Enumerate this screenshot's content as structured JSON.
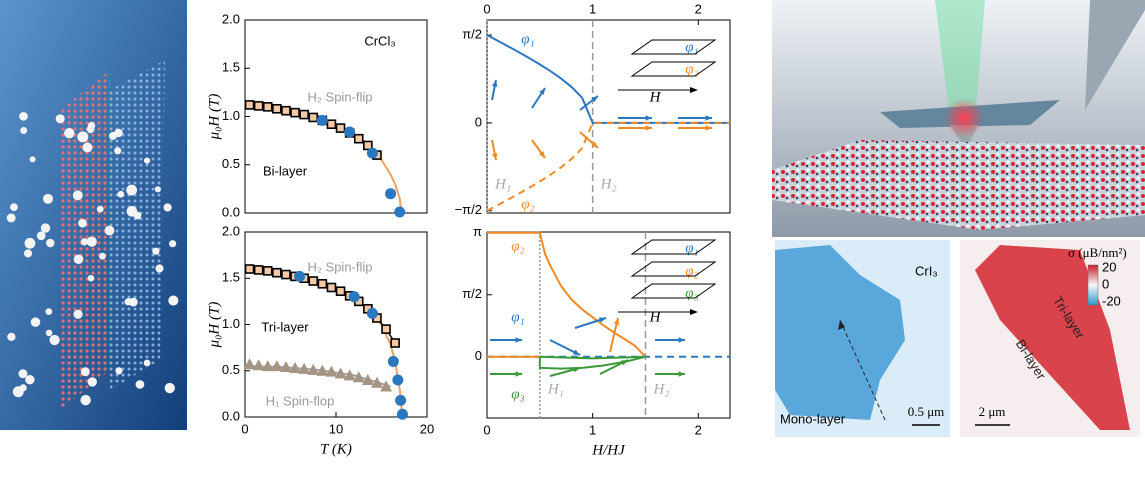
{
  "chart_data": [
    {
      "type": "scatter",
      "xlim": [
        0,
        20
      ],
      "ylim": [
        0,
        2.0
      ],
      "yticks": [
        {
          "value": 0,
          "label": "0.0"
        },
        {
          "value": 0.5,
          "label": "0.5"
        },
        {
          "value": 1.0,
          "label": "1.0"
        },
        {
          "value": 1.5,
          "label": "1.5"
        },
        {
          "value": 2.0,
          "label": "2.0"
        }
      ],
      "ylabel": "μ₀H (T)",
      "annotations": [
        {
          "text": "CrCl₃",
          "color": "#000000"
        },
        {
          "text": "H₂ Spin-flip",
          "color": "#999999"
        },
        {
          "text": "Bi-layer",
          "color": "#000000"
        }
      ],
      "series": [
        {
          "color": "#f0a060",
          "marker": "line",
          "x": [
            0,
            2,
            4,
            6,
            8,
            10,
            12,
            13,
            14,
            15,
            16,
            16.5,
            17,
            17.2
          ],
          "values": [
            1.14,
            1.13,
            1.1,
            1.06,
            1.0,
            0.92,
            0.82,
            0.75,
            0.66,
            0.55,
            0.4,
            0.3,
            0.15,
            0
          ]
        },
        {
          "color": "#000000",
          "marker": "square",
          "x": [
            0.5,
            1.5,
            2.5,
            3.5,
            4.5,
            5.5,
            6.5,
            7.5,
            8.5,
            9.5,
            10.5,
            11.5,
            12.5,
            13.5,
            14.5
          ],
          "values": [
            1.12,
            1.11,
            1.1,
            1.08,
            1.06,
            1.04,
            1.02,
            0.99,
            0.96,
            0.92,
            0.88,
            0.83,
            0.77,
            0.7,
            0.6
          ]
        },
        {
          "color": "#2a78c0",
          "marker": "circle",
          "x": [
            8.5,
            11.5,
            14,
            16,
            17
          ],
          "values": [
            0.96,
            0.84,
            0.62,
            0.2,
            0.01
          ]
        }
      ]
    },
    {
      "type": "scatter",
      "xlim": [
        0,
        20
      ],
      "ylim": [
        0,
        2.0
      ],
      "xticks": [
        0,
        10,
        20
      ],
      "yticks": [
        {
          "value": 0,
          "label": "0.0"
        },
        {
          "value": 0.5,
          "label": "0.5"
        },
        {
          "value": 1.0,
          "label": "1.0"
        },
        {
          "value": 1.5,
          "label": "1.5"
        },
        {
          "value": 2.0,
          "label": "2.0"
        }
      ],
      "ylabel": "μ₀H (T)",
      "xlabel": "T (K)",
      "annotations": [
        {
          "text": "H₂ Spin-flip",
          "color": "#999999"
        },
        {
          "text": "Tri-layer",
          "color": "#000000"
        },
        {
          "text": "H₁ Spin-flop",
          "color": "#999999"
        }
      ],
      "series": [
        {
          "color": "#f0a060",
          "marker": "line",
          "x": [
            0,
            2,
            4,
            6,
            8,
            10,
            12,
            14,
            15,
            16,
            16.5,
            17,
            17.3
          ],
          "values": [
            1.62,
            1.6,
            1.57,
            1.52,
            1.46,
            1.38,
            1.28,
            1.12,
            1.0,
            0.78,
            0.6,
            0.3,
            0
          ]
        },
        {
          "color": "#a0a0a0",
          "marker": "line",
          "x": [
            0,
            4,
            8,
            12,
            16
          ],
          "values": [
            0.55,
            0.54,
            0.51,
            0.45,
            0.33
          ]
        },
        {
          "color": "#a39484",
          "marker": "triangle",
          "x": [
            0.5,
            1.5,
            2.5,
            3.5,
            4.5,
            5.5,
            6.5,
            7.5,
            8.5,
            9.5,
            10.5,
            11.5,
            12.5,
            13.5,
            14.5,
            15.5
          ],
          "values": [
            0.57,
            0.56,
            0.55,
            0.55,
            0.54,
            0.53,
            0.52,
            0.51,
            0.5,
            0.49,
            0.47,
            0.45,
            0.43,
            0.4,
            0.37,
            0.33
          ]
        },
        {
          "color": "#000000",
          "marker": "square",
          "x": [
            0.5,
            1.5,
            2.5,
            3.5,
            4.5,
            5.5,
            6.5,
            7.5,
            8.5,
            9.5,
            10.5,
            11.5,
            12.5,
            13.5,
            14.5,
            15.5,
            16.5
          ],
          "values": [
            1.6,
            1.59,
            1.58,
            1.56,
            1.54,
            1.52,
            1.5,
            1.47,
            1.44,
            1.4,
            1.36,
            1.31,
            1.25,
            1.17,
            1.07,
            0.95,
            0.8
          ]
        },
        {
          "color": "#2a78c0",
          "marker": "circle",
          "x": [
            6,
            12,
            14,
            16.3,
            16.8,
            17.1,
            17.3
          ],
          "values": [
            1.52,
            1.3,
            1.12,
            0.6,
            0.4,
            0.18,
            0.03
          ]
        }
      ]
    },
    {
      "type": "line",
      "xlim": [
        0,
        2.3
      ],
      "ylim": [
        -1.61,
        1.84
      ],
      "xticks": [
        0,
        1,
        2
      ],
      "xaxis": "top",
      "yticks": [
        {
          "value": -1.5708,
          "label": "−π/2"
        },
        0,
        {
          "value": 1.5708,
          "label": "π/2"
        }
      ],
      "vlines": [
        {
          "x": 0,
          "label": "H₁",
          "dash": "2,2"
        },
        {
          "x": 1,
          "label": "H₂",
          "dash": "7,4"
        }
      ],
      "annotations": [
        {
          "text": "φ₁",
          "color": "#2a78c0"
        },
        {
          "text": "φ₂",
          "color": "#f08a24"
        },
        {
          "text": "φ₁",
          "color": "#2a78c0"
        },
        {
          "text": "φ₂",
          "color": "#f08a24"
        },
        {
          "text": "H",
          "color": "#000000"
        }
      ],
      "series": [
        {
          "color": "#2a78c0",
          "dash": false,
          "x": [
            0,
            0.1,
            0.2,
            0.3,
            0.4,
            0.5,
            0.6,
            0.7,
            0.8,
            0.9,
            1.0,
            2.3
          ],
          "values": [
            1.571,
            1.471,
            1.369,
            1.266,
            1.159,
            1.047,
            0.927,
            0.795,
            0.644,
            0.451,
            0,
            0
          ]
        },
        {
          "color": "#f08a24",
          "dash": true,
          "x": [
            0,
            0.1,
            0.2,
            0.3,
            0.4,
            0.5,
            0.6,
            0.7,
            0.8,
            0.9,
            1.0,
            2.3
          ],
          "values": [
            -1.571,
            -1.471,
            -1.369,
            -1.266,
            -1.159,
            -1.047,
            -0.927,
            -0.795,
            -0.644,
            -0.451,
            0,
            0
          ]
        }
      ]
    },
    {
      "type": "line",
      "xlim": [
        0,
        2.3
      ],
      "ylim": [
        -1.55,
        3.16
      ],
      "xticks": [
        0,
        1,
        2
      ],
      "xlabel": "H/HJ",
      "yticks": [
        0,
        {
          "value": 1.5708,
          "label": "π/2"
        },
        {
          "value": 3.1416,
          "label": "π"
        }
      ],
      "vlines": [
        {
          "x": 0.5,
          "label": "H₁",
          "dash": "2,2"
        },
        {
          "x": 1.5,
          "label": "H₂",
          "dash": "7,4"
        }
      ],
      "annotations": [
        {
          "text": "φ₂",
          "color": "#f08a24"
        },
        {
          "text": "φ₁",
          "color": "#2a78c0"
        },
        {
          "text": "φ₃",
          "color": "#3a9a3a"
        },
        {
          "text": "φ₁",
          "color": "#2a78c0"
        },
        {
          "text": "φ₂",
          "color": "#f08a24"
        },
        {
          "text": "φ₃",
          "color": "#3a9a3a"
        },
        {
          "text": "H",
          "color": "#000000"
        }
      ],
      "series": [
        {
          "color": "#2a78c0",
          "dash": true,
          "x": [
            0,
            2.3
          ],
          "values": [
            0,
            0
          ]
        },
        {
          "color": "#f08a24",
          "dash": false,
          "x": [
            0,
            0.5,
            0.55,
            0.6,
            0.7,
            0.8,
            0.9,
            1.0,
            1.1,
            1.2,
            1.3,
            1.4,
            1.5
          ],
          "values": [
            3.1416,
            3.1416,
            2.6,
            2.3,
            1.8,
            1.45,
            1.2,
            1.0,
            0.8,
            0.62,
            0.45,
            0.28,
            0
          ]
        },
        {
          "color": "#f08a24",
          "dash": false,
          "x": [
            0,
            0.5
          ],
          "values": [
            0,
            0
          ]
        },
        {
          "color": "#3a9a3a",
          "dash": false,
          "x": [
            0.5,
            0.5,
            0.7,
            0.9,
            1.1,
            1.3,
            1.5
          ],
          "values": [
            0,
            -0.28,
            -0.3,
            -0.28,
            -0.22,
            -0.13,
            0
          ]
        },
        {
          "color": "#3a9a3a",
          "dash": false,
          "x": [
            0.5,
            1.0,
            1.5
          ],
          "values": [
            0,
            -0.04,
            0
          ]
        }
      ]
    }
  ],
  "images": {
    "crI3": "CrI₃",
    "mono": "Mono-layer",
    "scale1": "0.5 μm",
    "tri": "Tri-layer",
    "bi": "Bi-layer",
    "scale2": "2 μm",
    "colorbar": {
      "label": "σ (μB/nm²)",
      "ticks": [
        "20",
        "0",
        "-20"
      ]
    }
  }
}
